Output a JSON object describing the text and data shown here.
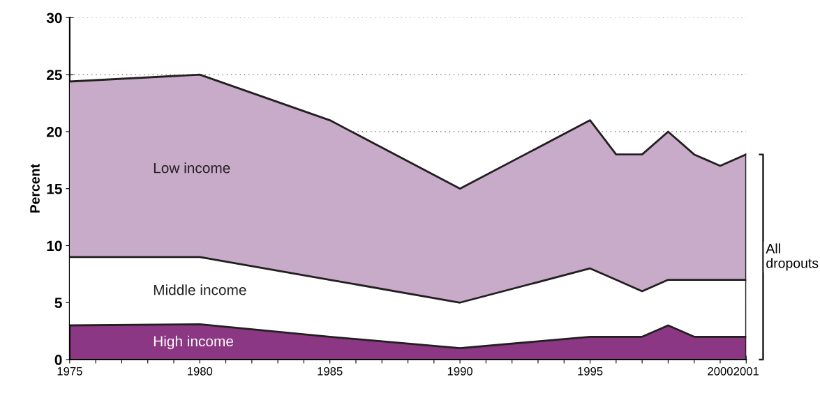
{
  "chart_data": {
    "type": "area",
    "stacked": true,
    "ylabel": "Percent",
    "x": [
      1975,
      1980,
      1985,
      1990,
      1995,
      1996,
      1997,
      1998,
      1999,
      2000,
      2001
    ],
    "series": [
      {
        "name": "High income",
        "color": "#8b3783",
        "values": [
          3,
          3.1,
          2,
          1,
          2,
          2,
          2,
          3,
          2,
          2,
          2
        ]
      },
      {
        "name": "Middle income",
        "color": "#ffffff",
        "values": [
          6,
          5.9,
          5,
          4,
          6,
          5,
          4,
          4,
          5,
          5,
          5
        ]
      },
      {
        "name": "Low income",
        "color": "#c8aac9",
        "values": [
          15.4,
          16,
          14,
          10,
          13,
          11,
          12,
          13,
          11,
          10,
          11
        ]
      }
    ],
    "annotations": [
      "All dropouts"
    ],
    "xlim": [
      1975,
      2001
    ],
    "xticks": [
      1975,
      {
        "value": 1976,
        "label": null
      },
      {
        "value": 1977,
        "label": null
      },
      {
        "value": 1978,
        "label": null
      },
      {
        "value": 1979,
        "label": null
      },
      1980,
      {
        "value": 1981,
        "label": null
      },
      {
        "value": 1982,
        "label": null
      },
      {
        "value": 1983,
        "label": null
      },
      {
        "value": 1984,
        "label": null
      },
      1985,
      {
        "value": 1986,
        "label": null
      },
      {
        "value": 1987,
        "label": null
      },
      {
        "value": 1988,
        "label": null
      },
      {
        "value": 1989,
        "label": null
      },
      1990,
      {
        "value": 1991,
        "label": null
      },
      {
        "value": 1992,
        "label": null
      },
      {
        "value": 1993,
        "label": null
      },
      {
        "value": 1994,
        "label": null
      },
      1995,
      {
        "value": 1996,
        "label": null
      },
      {
        "value": 1997,
        "label": null
      },
      {
        "value": 1998,
        "label": null
      },
      {
        "value": 1999,
        "label": null
      },
      2000,
      2001
    ],
    "ylim": [
      0,
      30
    ],
    "yticks": [
      0,
      5,
      10,
      15,
      20,
      25,
      30
    ],
    "grid": "y",
    "legend": false
  }
}
